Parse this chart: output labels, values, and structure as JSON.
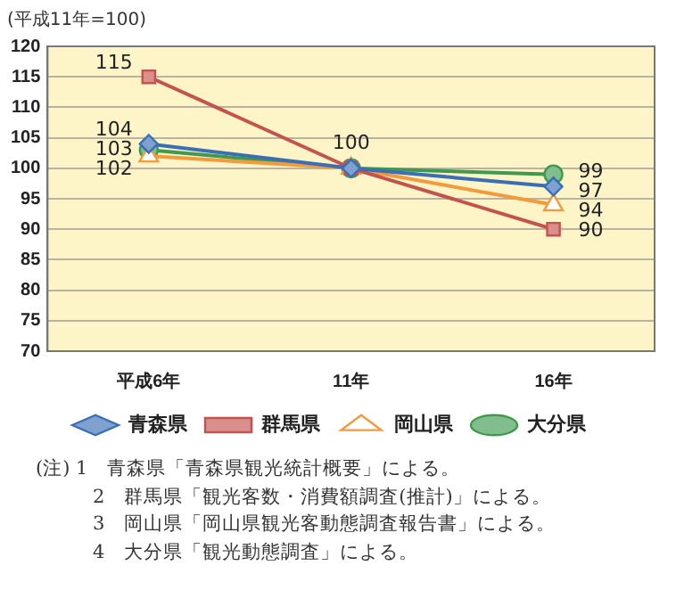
{
  "chart_data": {
    "type": "line",
    "ylabel": "(平成11年=100)",
    "categories": [
      "平成6年",
      "11年",
      "16年"
    ],
    "ylim": [
      70,
      120
    ],
    "yticks": [
      70,
      75,
      80,
      85,
      90,
      95,
      100,
      105,
      110,
      115,
      120
    ],
    "grid": "y",
    "legend": "bottom",
    "series": [
      {
        "name": "青森県",
        "color": "#3a6fb5",
        "marker": "diamond",
        "values": [
          104,
          100,
          97
        ],
        "value_labels": [
          "104",
          "100",
          "97"
        ]
      },
      {
        "name": "群馬県",
        "color": "#c4534d",
        "marker": "square",
        "values": [
          115,
          100,
          90
        ],
        "value_labels": [
          "115",
          null,
          "90"
        ]
      },
      {
        "name": "岡山県",
        "color": "#f39a3c",
        "marker": "triangle",
        "values": [
          102,
          100,
          94
        ],
        "value_labels": [
          "102",
          null,
          "94"
        ]
      },
      {
        "name": "大分県",
        "color": "#3f9a4f",
        "marker": "circle",
        "values": [
          103,
          100,
          99
        ],
        "value_labels": [
          "103",
          null,
          "99"
        ]
      }
    ],
    "annotations": [
      "(注) 1　青森県「青森県観光統計概要」による。",
      "2　群馬県「観光客数・消費額調査(推計)」による。",
      "3　岡山県「岡山県観光客動態調査報告書」による。",
      "4　大分県「観光動態調査」による。"
    ]
  }
}
